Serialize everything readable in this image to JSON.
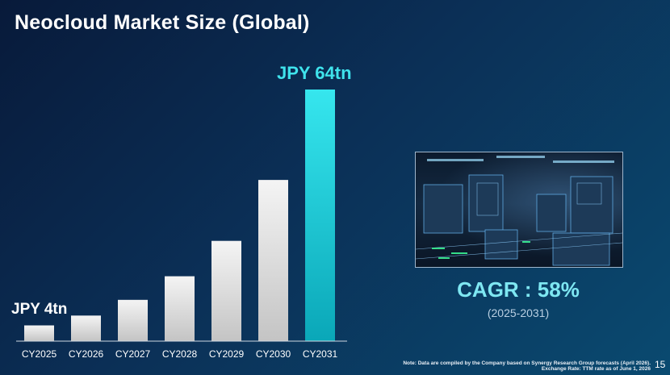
{
  "slide": {
    "title": "Neocloud Market Size (Global)",
    "page_number": "15"
  },
  "annotations": {
    "start_value_label": "JPY 4tn",
    "end_value_label": "JPY 64tn"
  },
  "cagr": {
    "label": "CAGR : 58%",
    "period": "(2025-2031)"
  },
  "note": {
    "line1": "Note: Data are compiled by the Company based on Synergy Research Group forecasts (April 2026).",
    "line2": "Exchange Rate: TTM rate as of June 1, 2026"
  },
  "colors": {
    "bar_default_top": "#f4f4f4",
    "bar_default_bottom": "#c4c4c4",
    "bar_highlight_top": "#36e6ee",
    "bar_highlight_bottom": "#0aa7b8",
    "accent_cyan": "#3fe3ec",
    "background_start": "#081a3a",
    "background_end": "#0a4a70"
  },
  "chart_data": {
    "type": "bar",
    "categories": [
      "CY2025",
      "CY2026",
      "CY2027",
      "CY2028",
      "CY2029",
      "CY2030",
      "CY2031"
    ],
    "values": [
      4,
      6.5,
      10.5,
      16.5,
      25.5,
      41,
      64
    ],
    "unit": "JPY tn",
    "highlight_index": 6,
    "ylim": [
      0,
      64
    ],
    "grid": false,
    "legend": false,
    "xlabel": "",
    "ylabel": "",
    "data_labels": [
      {
        "index": 0,
        "text": "JPY 4tn"
      },
      {
        "index": 6,
        "text": "JPY 64tn"
      }
    ]
  }
}
